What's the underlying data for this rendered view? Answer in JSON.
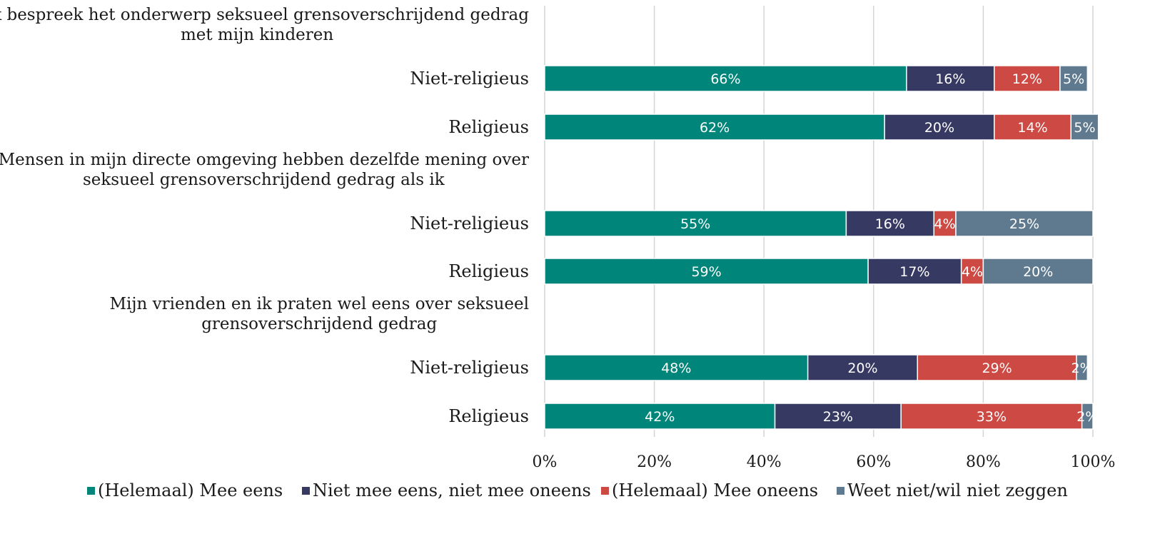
{
  "chart_data": {
    "type": "bar",
    "orientation": "horizontal",
    "stacked": true,
    "groups": [
      {
        "title": "Ik bespreek het onderwerp seksueel grensoverschrijdend gedrag met mijn kinderen",
        "title_lines": [
          "Ik bespreek het onderwerp seksueel grensoverschrijdend gedrag",
          "met mijn kinderen"
        ],
        "rows": [
          {
            "label": "Niet-religieus",
            "values": [
              66,
              16,
              12,
              5
            ],
            "data_labels": [
              "66%",
              "16%",
              "12%",
              "5%"
            ]
          },
          {
            "label": "Religieus",
            "values": [
              62,
              20,
              14,
              5
            ],
            "data_labels": [
              "62%",
              "20%",
              "14%",
              "5%"
            ]
          }
        ]
      },
      {
        "title": "Mensen in mijn directe omgeving hebben dezelfde mening over seksueel grensoverschrijdend gedrag als ik",
        "title_lines": [
          "Mensen in mijn directe omgeving hebben dezelfde mening over",
          "seksueel grensoverschrijdend gedrag als ik"
        ],
        "rows": [
          {
            "label": "Niet-religieus",
            "values": [
              55,
              16,
              4,
              25
            ],
            "data_labels": [
              "55%",
              "16%",
              "4%",
              "25%"
            ]
          },
          {
            "label": "Religieus",
            "values": [
              59,
              17,
              4,
              20
            ],
            "data_labels": [
              "59%",
              "17%",
              "4%",
              "20%"
            ]
          }
        ]
      },
      {
        "title": "Mijn vrienden en ik praten wel eens over seksueel grensoverschrijdend gedrag",
        "title_lines": [
          "Mijn vrienden en ik praten wel eens over seksueel",
          "grensoverschrijdend gedrag"
        ],
        "rows": [
          {
            "label": "Niet-religieus",
            "values": [
              48,
              20,
              29,
              2
            ],
            "data_labels": [
              "48%",
              "20%",
              "29%",
              "2%"
            ]
          },
          {
            "label": "Religieus",
            "values": [
              42,
              23,
              33,
              2
            ],
            "data_labels": [
              "42%",
              "23%",
              "33%",
              "2%"
            ]
          }
        ]
      }
    ],
    "series": [
      {
        "name": "(Helemaal) Mee eens",
        "color": "#00857a"
      },
      {
        "name": "Niet mee eens, niet mee oneens",
        "color": "#363a63"
      },
      {
        "name": "(Helemaal) Mee oneens",
        "color": "#cd4a44"
      },
      {
        "name": "Weet niet/wil niet zeggen",
        "color": "#5f7a8f"
      }
    ],
    "x_ticks": [
      0,
      20,
      40,
      60,
      80,
      100
    ],
    "x_tick_labels": [
      "0%",
      "20%",
      "40%",
      "60%",
      "80%",
      "100%"
    ],
    "xlim": [
      0,
      100
    ],
    "grid": true,
    "legend_position": "bottom"
  }
}
